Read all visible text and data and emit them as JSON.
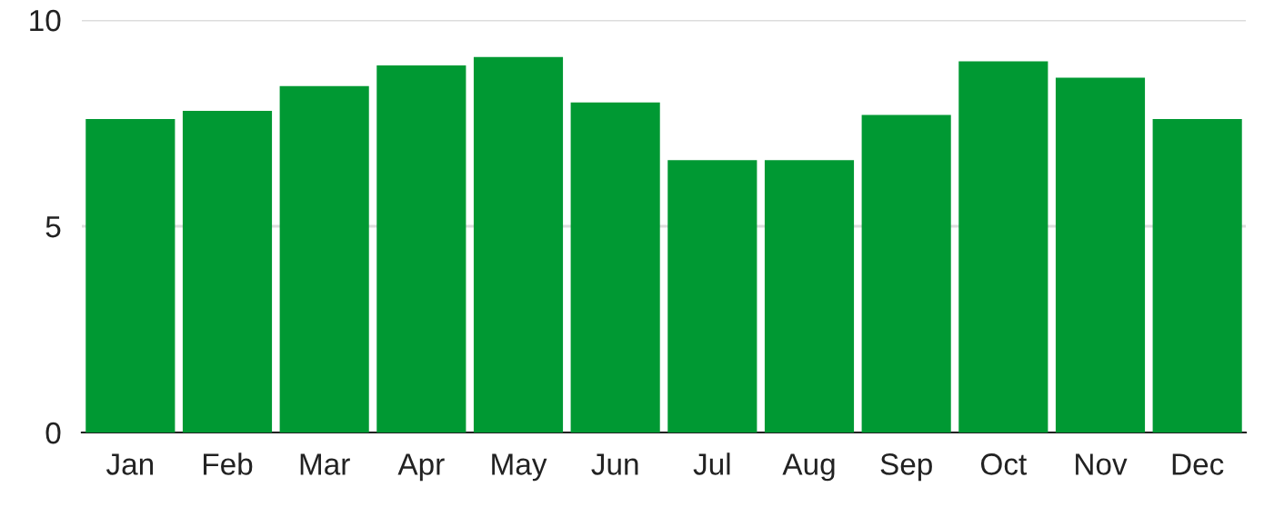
{
  "chart_data": {
    "type": "bar",
    "categories": [
      "Jan",
      "Feb",
      "Mar",
      "Apr",
      "May",
      "Jun",
      "Jul",
      "Aug",
      "Sep",
      "Oct",
      "Nov",
      "Dec"
    ],
    "values": [
      7.6,
      7.8,
      8.4,
      8.9,
      9.1,
      8.0,
      6.6,
      6.6,
      7.7,
      9.0,
      8.6,
      7.6
    ],
    "color": "#009933",
    "ylim": [
      0,
      10
    ],
    "yticks": [
      0,
      5,
      10
    ],
    "grid": "y",
    "legend": false
  }
}
